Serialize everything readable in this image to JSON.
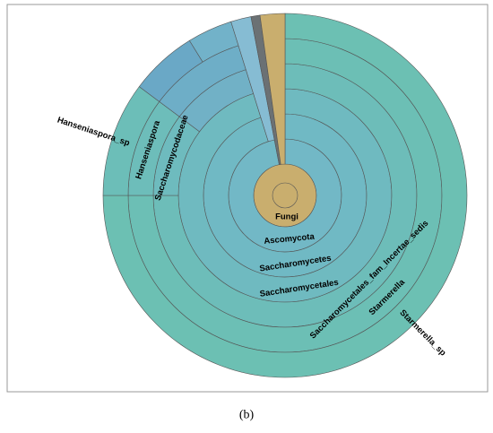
{
  "chart_data": {
    "type": "sunburst",
    "root": {
      "name": "Fungi",
      "value": 100,
      "color": "#c9ae6e",
      "children": [
        {
          "name": "Ascomycota",
          "value": 97,
          "color": "#72b8c6",
          "children": [
            {
              "name": "Saccharomycetes",
              "value": 95.2,
              "color": "#70b9c4",
              "children": [
                {
                  "name": "Saccharomycetales",
                  "value": 95.2,
                  "color": "#6fbac0",
                  "children": [
                    {
                      "name": "Saccharomycetales_fam_Incertae_sedis",
                      "value": 75,
                      "color": "#6dbdb9",
                      "children": [
                        {
                          "name": "Starmerella",
                          "value": 75,
                          "color": "#6cbfb5",
                          "children": [
                            {
                              "name": "Starmerella_sp",
                              "value": 75,
                              "color": "#6cc0b3"
                            }
                          ]
                        }
                      ]
                    },
                    {
                      "name": "Saccharomycodaceae",
                      "value": 10.2,
                      "color": "#6ebbbe",
                      "children": [
                        {
                          "name": "Hanseniaspora",
                          "value": 10.2,
                          "color": "#6dbdba",
                          "children": [
                            {
                              "name": "Hanseniaspora_sp",
                              "value": 10.2,
                              "color": "#6cbeb8"
                            }
                          ]
                        }
                      ]
                    },
                    {
                      "value": 10,
                      "color": "#71b1c6",
                      "children": [
                        {
                          "value": 10,
                          "color": "#6eaec7",
                          "children": [
                            {
                              "value": 6,
                              "color": "#6aa8c6"
                            },
                            {
                              "value": 4,
                              "color": "#72b2c9"
                            }
                          ]
                        }
                      ]
                    }
                  ]
                }
              ]
            },
            {
              "value": 1.8,
              "color": "#86bcd3"
            }
          ]
        },
        {
          "value": 0.8,
          "color": "#6b7174"
        }
      ]
    }
  },
  "caption": "(b)"
}
